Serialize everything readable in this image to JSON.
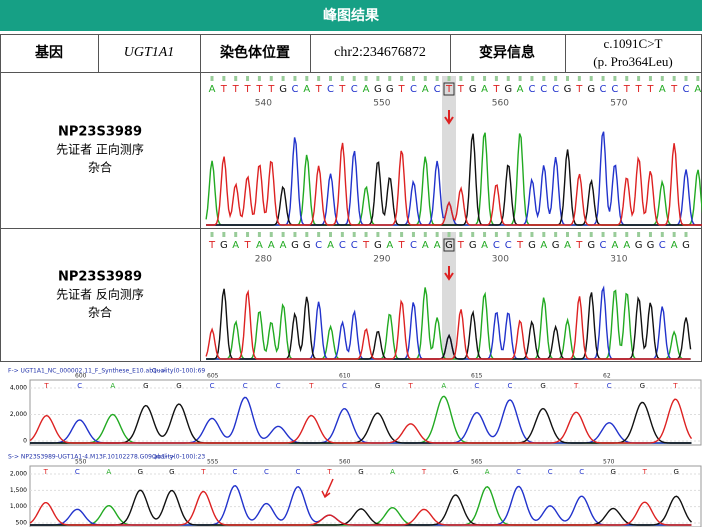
{
  "header": {
    "title": "峰图结果"
  },
  "info": {
    "gene_label": "基因",
    "gene": "UGT1A1",
    "locus_label": "染色体位置",
    "locus": "chr2:234676872",
    "variant_label": "变异信息",
    "variant_c": "c.1091C>T",
    "variant_p": "(p. Pro364Leu)"
  },
  "rows": [
    {
      "sample": "NP23S3989",
      "desc": "先证者 正向测序",
      "zygosity": "杂合",
      "bases": [
        "A",
        "T",
        "T",
        "T",
        "T",
        "T",
        "G",
        "C",
        "A",
        "T",
        "C",
        "T",
        "C",
        "A",
        "G",
        "G",
        "T",
        "C",
        "A",
        "C",
        "T",
        "T",
        "G",
        "A",
        "T",
        "G",
        "A",
        "C",
        "C",
        "C",
        "G",
        "T",
        "G",
        "C",
        "C",
        "T",
        "T",
        "T",
        "A",
        "T",
        "C",
        "A"
      ],
      "positions": [
        540,
        550,
        560,
        570
      ]
    },
    {
      "sample": "NP23S3989",
      "desc": "先证者 反向测序",
      "zygosity": "杂合",
      "bases": [
        "T",
        "G",
        "A",
        "T",
        "A",
        "A",
        "A",
        "G",
        "G",
        "C",
        "A",
        "C",
        "C",
        "T",
        "G",
        "A",
        "T",
        "C",
        "A",
        "A",
        "G",
        "T",
        "G",
        "A",
        "C",
        "C",
        "T",
        "G",
        "A",
        "G",
        "A",
        "T",
        "G",
        "C",
        "A",
        "A",
        "G",
        "G",
        "C",
        "A",
        "G"
      ],
      "positions": [
        280,
        290,
        300,
        310
      ]
    }
  ],
  "panels": [
    {
      "file": "F-> UGT1A1_NC_000002.11_F_Synthese_E10.ab1-->",
      "quality": "Quality(0-100):69",
      "yticks": [
        "4,000",
        "2,000",
        "0"
      ],
      "positions": [
        600,
        605,
        610,
        615,
        62
      ],
      "bases": [
        "T",
        "C",
        "A",
        "G",
        "G",
        "C",
        "C",
        "C",
        "T",
        "C",
        "G",
        "T",
        "A",
        "C",
        "C",
        "G",
        "T",
        "C",
        "G",
        "T"
      ]
    },
    {
      "file": "S-> NP23S3989-UGT1A1-4.M13F.10102278.G09.ab1-->",
      "quality": "Quality(0-100):23",
      "yticks": [
        "2,000",
        "1,500",
        "1,000",
        "500"
      ],
      "positions": [
        550,
        555,
        560,
        565,
        570
      ],
      "bases": [
        "T",
        "C",
        "A",
        "G",
        "G",
        "T",
        "C",
        "C",
        "C",
        "T",
        "G",
        "A",
        "T",
        "G",
        "A",
        "C",
        "C",
        "C",
        "G",
        "T",
        "G"
      ]
    }
  ]
}
